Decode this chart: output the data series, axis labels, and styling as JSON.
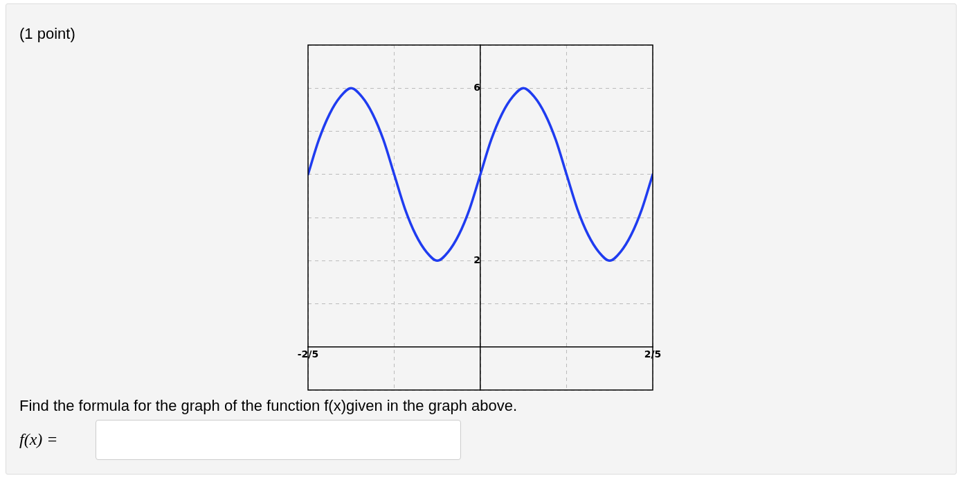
{
  "chart_data": {
    "type": "line",
    "x": [
      -0.4,
      -0.375,
      -0.35,
      -0.325,
      -0.3,
      -0.275,
      -0.25,
      -0.225,
      -0.2,
      -0.175,
      -0.15,
      -0.125,
      -0.1,
      -0.075,
      -0.05,
      -0.025,
      0,
      0.025,
      0.05,
      0.075,
      0.1,
      0.125,
      0.15,
      0.175,
      0.2,
      0.225,
      0.25,
      0.275,
      0.3,
      0.325,
      0.35,
      0.375,
      0.4
    ],
    "series": [
      {
        "color": "#1f3cf0",
        "values": [
          4,
          4.8,
          5.4,
          5.8,
          6,
          5.8,
          5.4,
          4.8,
          4,
          3.2,
          2.6,
          2.2,
          2,
          2.2,
          2.6,
          3.2,
          4,
          4.8,
          5.4,
          5.8,
          6,
          5.8,
          5.4,
          4.8,
          4,
          3.2,
          2.6,
          2.2,
          2,
          2.2,
          2.6,
          3.2,
          4
        ]
      }
    ],
    "xlim": [
      -0.4,
      0.4
    ],
    "xticks": [
      {
        "value": -0.4,
        "label": "-2/5"
      },
      {
        "value": -0.2,
        "label": null
      },
      {
        "value": 0,
        "label": null
      },
      {
        "value": 0.2,
        "label": null
      },
      {
        "value": 0.4,
        "label": "2/5"
      }
    ],
    "ylim": [
      -1,
      7
    ],
    "yticks": [
      {
        "value": -1,
        "label": null
      },
      {
        "value": 0,
        "label": null
      },
      {
        "value": 1,
        "label": null
      },
      2,
      {
        "value": 3,
        "label": null
      },
      {
        "value": 4,
        "label": null
      },
      {
        "value": 5,
        "label": null
      },
      6,
      {
        "value": 7,
        "label": null
      }
    ],
    "grid": true,
    "legend": false,
    "marker": "none",
    "line_style": "solid",
    "annotations": [
      "(1 point)",
      "Find the formula for the graph of the function f(x)given in the graph above.",
      "f(x) ="
    ]
  }
}
